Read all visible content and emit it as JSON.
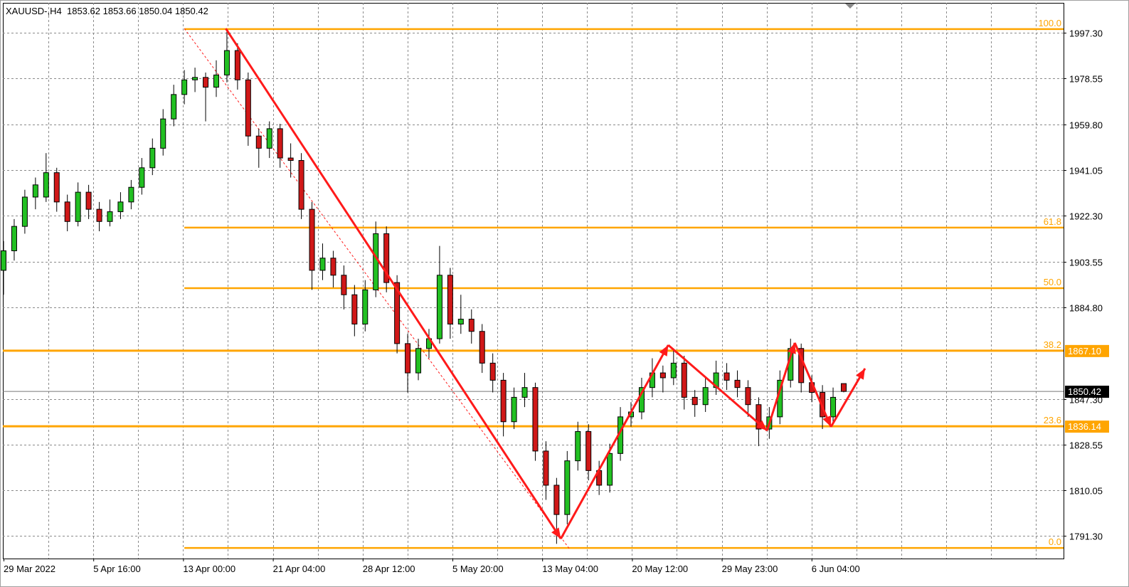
{
  "header": {
    "symbol": "XAUUSD-,H4",
    "open": "1853.62",
    "high": "1853.66",
    "low": "1850.04",
    "close": "1850.42"
  },
  "colors": {
    "bull": "#22c022",
    "bear": "#d01818",
    "fib": "#ffa500",
    "trend": "#ff1a1a",
    "grid": "#8a8a8a",
    "current": "#000000"
  },
  "chart_data": {
    "type": "candlestick",
    "title": "",
    "ylim": [
      1781,
      2006
    ],
    "y_ticks": [
      "1997.30",
      "1978.55",
      "1959.80",
      "1941.05",
      "1922.30",
      "1903.55",
      "1884.80",
      "1847.30",
      "1828.55",
      "1810.05",
      "1791.30"
    ],
    "y_tick_values": [
      1997.3,
      1978.55,
      1959.8,
      1941.05,
      1922.3,
      1903.55,
      1884.8,
      1847.3,
      1828.55,
      1810.05,
      1791.3
    ],
    "x_labels": [
      "29 Mar 2022",
      "5 Apr 16:00",
      "13 Apr 00:00",
      "21 Apr 04:00",
      "28 Apr 12:00",
      "5 May 20:00",
      "13 May 04:00",
      "20 May 12:00",
      "29 May 23:00",
      "6 Jun 04:00"
    ],
    "grid": true,
    "candles_ohlc": [
      [
        1900,
        1912,
        1890,
        1908
      ],
      [
        1908,
        1921,
        1904,
        1918
      ],
      [
        1918,
        1933,
        1915,
        1930
      ],
      [
        1930,
        1938,
        1925,
        1935
      ],
      [
        1930,
        1948,
        1928,
        1940
      ],
      [
        1940,
        1942,
        1924,
        1928
      ],
      [
        1928,
        1931,
        1916,
        1920
      ],
      [
        1920,
        1936,
        1918,
        1932
      ],
      [
        1932,
        1935,
        1921,
        1925
      ],
      [
        1925,
        1928,
        1916,
        1920
      ],
      [
        1920,
        1929,
        1918,
        1924
      ],
      [
        1924,
        1932,
        1921,
        1928
      ],
      [
        1928,
        1937,
        1925,
        1934
      ],
      [
        1934,
        1946,
        1931,
        1942
      ],
      [
        1942,
        1954,
        1939,
        1950
      ],
      [
        1950,
        1966,
        1947,
        1962
      ],
      [
        1962,
        1976,
        1959,
        1972
      ],
      [
        1972,
        1982,
        1968,
        1978
      ],
      [
        1978,
        1983,
        1973,
        1979
      ],
      [
        1979,
        1981,
        1961,
        1975
      ],
      [
        1975,
        1986,
        1971,
        1980
      ],
      [
        1980,
        1998,
        1977,
        1990
      ],
      [
        1990,
        1993,
        1974,
        1978
      ],
      [
        1978,
        1981,
        1951,
        1955
      ],
      [
        1955,
        1958,
        1942,
        1950
      ],
      [
        1950,
        1961,
        1946,
        1958
      ],
      [
        1958,
        1960,
        1942,
        1946
      ],
      [
        1946,
        1952,
        1938,
        1945
      ],
      [
        1945,
        1948,
        1921,
        1925
      ],
      [
        1925,
        1928,
        1892,
        1900
      ],
      [
        1900,
        1911,
        1896,
        1905
      ],
      [
        1905,
        1908,
        1893,
        1898
      ],
      [
        1898,
        1902,
        1884,
        1890
      ],
      [
        1890,
        1894,
        1873,
        1878
      ],
      [
        1878,
        1896,
        1875,
        1892
      ],
      [
        1892,
        1920,
        1889,
        1915
      ],
      [
        1915,
        1918,
        1891,
        1895
      ],
      [
        1895,
        1898,
        1866,
        1870
      ],
      [
        1870,
        1874,
        1850,
        1858
      ],
      [
        1858,
        1872,
        1855,
        1868
      ],
      [
        1868,
        1876,
        1864,
        1872
      ],
      [
        1872,
        1910,
        1870,
        1898
      ],
      [
        1898,
        1901,
        1872,
        1878
      ],
      [
        1878,
        1890,
        1874,
        1880
      ],
      [
        1880,
        1884,
        1870,
        1875
      ],
      [
        1875,
        1878,
        1858,
        1862
      ],
      [
        1862,
        1866,
        1850,
        1855
      ],
      [
        1855,
        1858,
        1832,
        1838
      ],
      [
        1838,
        1852,
        1835,
        1848
      ],
      [
        1848,
        1858,
        1844,
        1852
      ],
      [
        1852,
        1854,
        1822,
        1826
      ],
      [
        1826,
        1830,
        1806,
        1812
      ],
      [
        1812,
        1815,
        1788,
        1800
      ],
      [
        1800,
        1826,
        1796,
        1822
      ],
      [
        1822,
        1838,
        1818,
        1834
      ],
      [
        1834,
        1837,
        1814,
        1818
      ],
      [
        1818,
        1822,
        1808,
        1812
      ],
      [
        1812,
        1829,
        1809,
        1825
      ],
      [
        1825,
        1844,
        1822,
        1840
      ],
      [
        1840,
        1846,
        1836,
        1842
      ],
      [
        1842,
        1856,
        1839,
        1852
      ],
      [
        1852,
        1864,
        1848,
        1858
      ],
      [
        1858,
        1861,
        1850,
        1856
      ],
      [
        1856,
        1868,
        1853,
        1862
      ],
      [
        1862,
        1865,
        1843,
        1848
      ],
      [
        1848,
        1851,
        1840,
        1845
      ],
      [
        1845,
        1856,
        1842,
        1852
      ],
      [
        1852,
        1863,
        1849,
        1858
      ],
      [
        1858,
        1862,
        1851,
        1855
      ],
      [
        1855,
        1859,
        1848,
        1852
      ],
      [
        1852,
        1855,
        1840,
        1845
      ],
      [
        1845,
        1848,
        1828,
        1835
      ],
      [
        1835,
        1844,
        1831,
        1840
      ],
      [
        1840,
        1859,
        1837,
        1855
      ],
      [
        1855,
        1872,
        1852,
        1868
      ],
      [
        1868,
        1870,
        1850,
        1854
      ],
      [
        1854,
        1857,
        1846,
        1850
      ],
      [
        1850,
        1853,
        1835,
        1840
      ],
      [
        1840,
        1852,
        1837,
        1848
      ],
      [
        1853.62,
        1853.66,
        1850.04,
        1850.42
      ]
    ],
    "fibonacci": {
      "start_bar": 17,
      "high": 1998.8,
      "low": 1786.3,
      "levels": [
        {
          "label": "100.0",
          "price": 1998.8
        },
        {
          "label": "61.8",
          "price": 1917.5
        },
        {
          "label": "50.0",
          "price": 1892.7
        },
        {
          "label": "38.2",
          "price": 1867.1,
          "tag": "1867.10"
        },
        {
          "label": "23.6",
          "price": 1836.14,
          "tag": "1836.14"
        },
        {
          "label": "0.0",
          "price": 1786.3
        }
      ]
    },
    "current_price": {
      "value": 1850.42,
      "label": "1850.42"
    },
    "fib_trendline": {
      "from": [
        17,
        1999
      ],
      "to": [
        53.2,
        1786
      ]
    },
    "arrows": [
      {
        "from": [
          20.9,
          1999
        ],
        "to": [
          52.4,
          1790.1
        ]
      },
      {
        "from": [
          52.4,
          1790.1
        ],
        "to": [
          62.5,
          1869.4
        ]
      },
      {
        "from": [
          62.5,
          1869.4
        ],
        "to": [
          71.8,
          1834.4
        ]
      },
      {
        "from": [
          71.8,
          1834.4
        ],
        "to": [
          74.4,
          1870.3
        ]
      },
      {
        "from": [
          74.4,
          1870.3
        ],
        "to": [
          77.8,
          1835.9
        ]
      },
      {
        "from": [
          77.8,
          1835.9
        ],
        "to": [
          81,
          1859.8
        ]
      }
    ]
  }
}
